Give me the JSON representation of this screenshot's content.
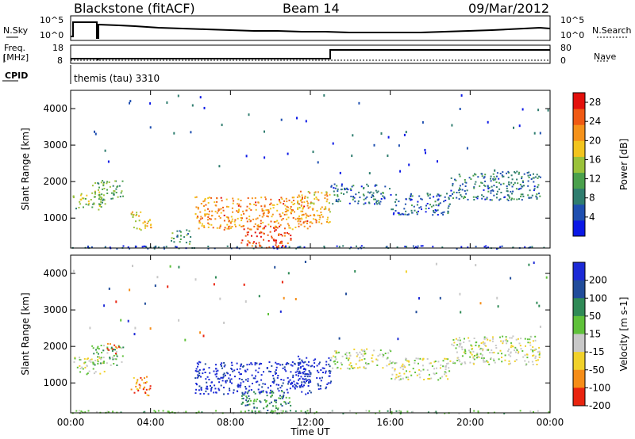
{
  "header": {
    "radar": "Blackstone (fitACF)",
    "beam": "Beam 14",
    "date": "09/Mar/2012"
  },
  "top_panels": {
    "nsky_label": "N.Sky",
    "nsearch_label": "N.Search",
    "freq_label": "Freq.",
    "freq_unit": "[MHz]",
    "nave_label": "Nave",
    "cpid_label": "CPID",
    "cpid_text": "themis (tau) 3310",
    "noise_ticks_left": [
      "10^5",
      "10^0"
    ],
    "noise_ticks_right": [
      "10^5",
      "10^0"
    ],
    "freq_ticks": [
      "18",
      "8"
    ],
    "nave_ticks": [
      "80",
      "0"
    ]
  },
  "chart_data": [
    {
      "type": "heatmap",
      "name": "power",
      "ylabel": "Slant Range [km]",
      "xlabel": "Time UT",
      "x_ticks": [
        "00:00",
        "04:00",
        "08:00",
        "12:00",
        "16:00",
        "20:00",
        "00:00"
      ],
      "xlim_hours": [
        0,
        24
      ],
      "y_ticks": [
        1000,
        2000,
        3000,
        4000
      ],
      "ylim": [
        180,
        4500
      ],
      "colorbar": {
        "label": "Power [dB]",
        "ticks": [
          4,
          8,
          12,
          16,
          20,
          24,
          28
        ],
        "range": [
          0,
          30
        ],
        "colors": [
          "#0b18e6",
          "#1f4fb0",
          "#2f7d6f",
          "#4aa04c",
          "#9ac23a",
          "#f2c41e",
          "#f5921b",
          "#f05a14",
          "#e3100c"
        ]
      },
      "regions": [
        {
          "t": [
            0.1,
            1.7
          ],
          "r": [
            1250,
            1750
          ],
          "value": 14
        },
        {
          "t": [
            1.0,
            2.6
          ],
          "r": [
            1500,
            2050
          ],
          "value": 12
        },
        {
          "t": [
            3.0,
            4.0
          ],
          "r": [
            650,
            1200
          ],
          "value": 18
        },
        {
          "t": [
            5.0,
            6.0
          ],
          "r": [
            300,
            700
          ],
          "value": 10
        },
        {
          "t": [
            6.2,
            12.0
          ],
          "r": [
            700,
            1600
          ],
          "value": 22
        },
        {
          "t": [
            8.5,
            11.0
          ],
          "r": [
            200,
            800
          ],
          "value": 26
        },
        {
          "t": [
            11.3,
            13.0
          ],
          "r": [
            850,
            1750
          ],
          "value": 20
        },
        {
          "t": [
            13.0,
            16.0
          ],
          "r": [
            1400,
            1950
          ],
          "value": 7
        },
        {
          "t": [
            16.0,
            19.0
          ],
          "r": [
            1100,
            1700
          ],
          "value": 6
        },
        {
          "t": [
            19.0,
            23.5
          ],
          "r": [
            1500,
            2300
          ],
          "value": 8
        },
        {
          "t": [
            0.0,
            24.0
          ],
          "r": [
            180,
            260
          ],
          "value": 5
        }
      ]
    },
    {
      "type": "heatmap",
      "name": "velocity",
      "ylabel": "Slant Range [km]",
      "xlabel": "Time UT",
      "x_ticks": [
        "00:00",
        "04:00",
        "08:00",
        "12:00",
        "16:00",
        "20:00",
        "00:00"
      ],
      "xlim_hours": [
        0,
        24
      ],
      "y_ticks": [
        1000,
        2000,
        3000,
        4000
      ],
      "ylim": [
        180,
        4500
      ],
      "colorbar": {
        "label": "Velocity [m s-1]",
        "ticks": [
          200,
          100,
          50,
          15,
          -15,
          -50,
          -100,
          -200
        ],
        "colors": [
          "#1c2ad6",
          "#214c9a",
          "#2f8a56",
          "#5fc13a",
          "#c8c8c8",
          "#f1d12a",
          "#f58d18",
          "#e9240f"
        ]
      },
      "regions": [
        {
          "t": [
            0.1,
            1.7
          ],
          "r": [
            1250,
            1750
          ],
          "class": 4
        },
        {
          "t": [
            1.0,
            2.6
          ],
          "r": [
            1500,
            2050
          ],
          "class": 3
        },
        {
          "t": [
            1.8,
            2.4
          ],
          "r": [
            1800,
            2100
          ],
          "class": 7
        },
        {
          "t": [
            3.0,
            4.0
          ],
          "r": [
            650,
            1200
          ],
          "class": 6
        },
        {
          "t": [
            6.2,
            12.0
          ],
          "r": [
            700,
            1600
          ],
          "class": 0
        },
        {
          "t": [
            8.5,
            11.0
          ],
          "r": [
            200,
            800
          ],
          "class": 2
        },
        {
          "t": [
            11.3,
            13.0
          ],
          "r": [
            850,
            1750
          ],
          "class": 0
        },
        {
          "t": [
            13.0,
            16.0
          ],
          "r": [
            1400,
            1950
          ],
          "class": 4
        },
        {
          "t": [
            16.0,
            19.0
          ],
          "r": [
            1100,
            1700
          ],
          "class": 4
        },
        {
          "t": [
            19.0,
            23.5
          ],
          "r": [
            1500,
            2300
          ],
          "class": 4
        },
        {
          "t": [
            0.0,
            24.0
          ],
          "r": [
            180,
            260
          ],
          "class": 3
        }
      ]
    }
  ]
}
